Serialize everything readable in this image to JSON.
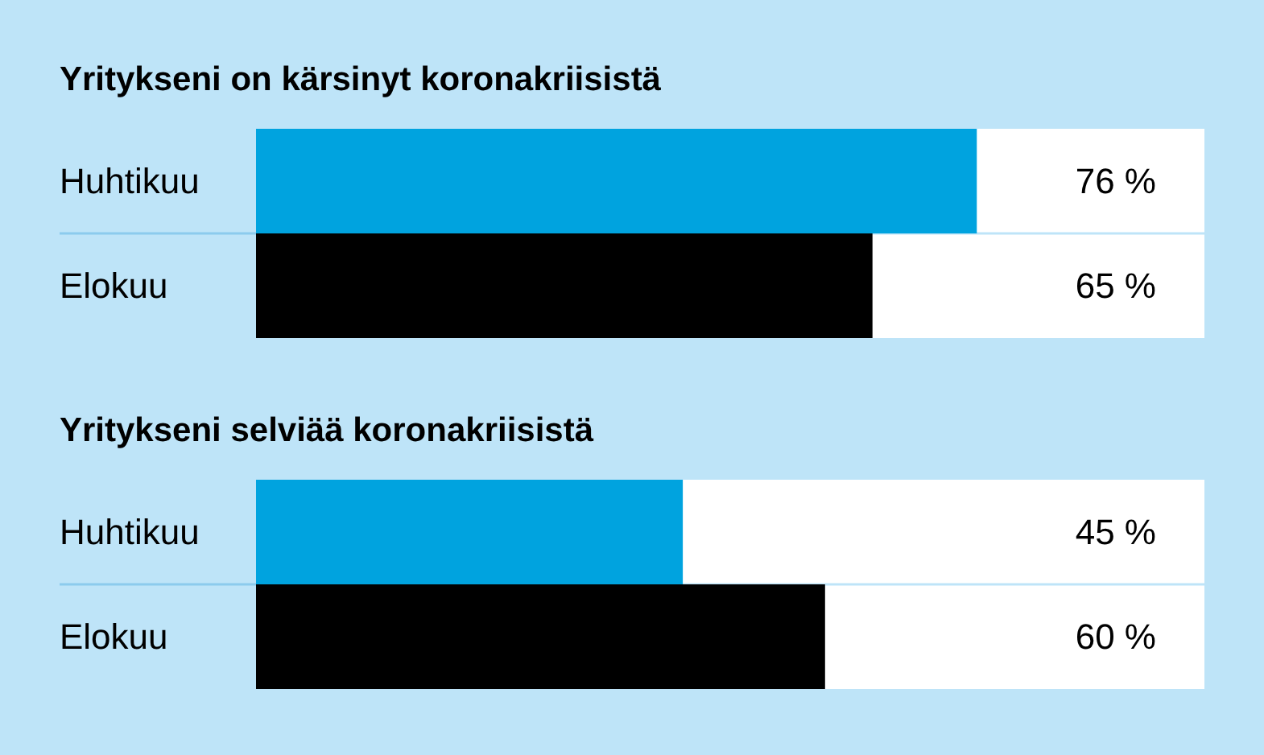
{
  "chart_data": [
    {
      "type": "bar",
      "orientation": "horizontal",
      "title": "Yritykseni on kärsinyt koronakriisistä",
      "categories": [
        "Huhtikuu",
        "Elokuu"
      ],
      "values": [
        76,
        65
      ],
      "colors": [
        "#00a3df",
        "#000000"
      ],
      "value_labels": [
        "76 %",
        "65 %"
      ],
      "xlim": [
        0,
        100
      ],
      "tick_labels": false
    },
    {
      "type": "bar",
      "orientation": "horizontal",
      "title": "Yritykseni selviää koronakriisistä",
      "categories": [
        "Huhtikuu",
        "Elokuu"
      ],
      "values": [
        45,
        60
      ],
      "colors": [
        "#00a3df",
        "#000000"
      ],
      "value_labels": [
        "45 %",
        "60 %"
      ],
      "xlim": [
        0,
        100
      ],
      "tick_labels": false
    }
  ]
}
